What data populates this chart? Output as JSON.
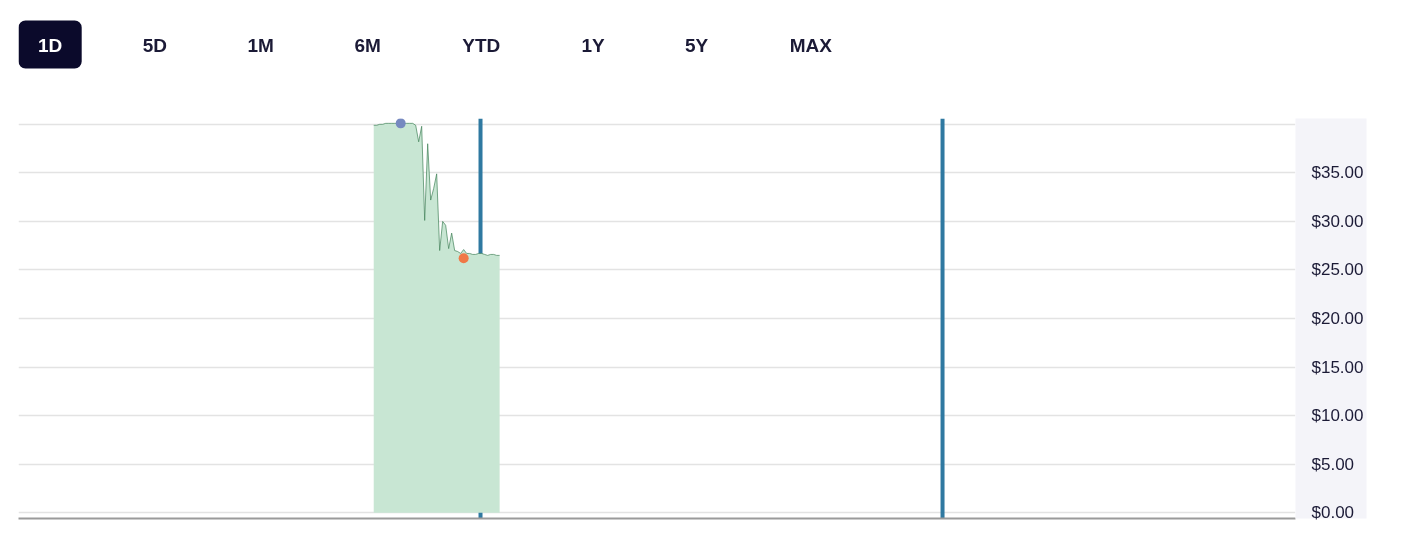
{
  "chart_data": {
    "type": "area",
    "annotations": [
      "1D",
      "5D",
      "1M",
      "6M",
      "YTD",
      "1Y",
      "5Y",
      "MAX"
    ],
    "categories": [
      null,
      null,
      null,
      null,
      null,
      null,
      null,
      null,
      null,
      null,
      null,
      null,
      null,
      null,
      null,
      null,
      null,
      null,
      null,
      null,
      null,
      null,
      null,
      null,
      null,
      null,
      null,
      null,
      null,
      null,
      null,
      null,
      null,
      null,
      null,
      null,
      null,
      null,
      null,
      null,
      null,
      null,
      null,
      null,
      null,
      null,
      null,
      null,
      null,
      null,
      null,
      null,
      null,
      null,
      null,
      null,
      null,
      null,
      null,
      null,
      null,
      null,
      null,
      null,
      null,
      null,
      null,
      null,
      null,
      null,
      null,
      null,
      null,
      null,
      null,
      null,
      null,
      null,
      null,
      null,
      null,
      null,
      null,
      null,
      null,
      null,
      null,
      null,
      null,
      null,
      null,
      null,
      null,
      null,
      null,
      null,
      null,
      null,
      null,
      null,
      null,
      null,
      null,
      null,
      null,
      null,
      null,
      null,
      null,
      null,
      null,
      null,
      null,
      null,
      null,
      null,
      null,
      null,
      null,
      null,
      null,
      null,
      null,
      null,
      null,
      null,
      null,
      null,
      null,
      null,
      null,
      null,
      null,
      null,
      null,
      null,
      null,
      null,
      null,
      null,
      null,
      null,
      null,
      null,
      null,
      null,
      null,
      null,
      null,
      null,
      null,
      null,
      null,
      null,
      null,
      null,
      null,
      null,
      null,
      null,
      null,
      null,
      null,
      null,
      null,
      null,
      null,
      null,
      null,
      null,
      null,
      null,
      null,
      null,
      null,
      null,
      null,
      null,
      null,
      null,
      null,
      null,
      null,
      null,
      null,
      null,
      null,
      null,
      null,
      null,
      null,
      null,
      null,
      null,
      null,
      null,
      null,
      null,
      null,
      null,
      null,
      null,
      null,
      null,
      null,
      null,
      null,
      null,
      null,
      null,
      null,
      null,
      null,
      null,
      null,
      null,
      null,
      null,
      null,
      null,
      null,
      null,
      null,
      null,
      null,
      null,
      null,
      null,
      null,
      null,
      null,
      null,
      null,
      null,
      null,
      null,
      null,
      null,
      null,
      null,
      null,
      null,
      null,
      null,
      null,
      null,
      null,
      null,
      null,
      null,
      null,
      null,
      null,
      null,
      null,
      null,
      null,
      null,
      null,
      null,
      null,
      null,
      null,
      null,
      null,
      null,
      null,
      null,
      null,
      null,
      null,
      null,
      null,
      null,
      null,
      null,
      null,
      null,
      null,
      null,
      null,
      null,
      null,
      null,
      null,
      null,
      null,
      null,
      null,
      null,
      null,
      null,
      null,
      null,
      null,
      null,
      null,
      null,
      null,
      null,
      null,
      null,
      null,
      null,
      null,
      null,
      null,
      null,
      null,
      null,
      null,
      null,
      null,
      null,
      null,
      null,
      null,
      null,
      null,
      null,
      null,
      null,
      null,
      null,
      null,
      null,
      null,
      null,
      null,
      null,
      null,
      null,
      null,
      null,
      null,
      null,
      null,
      null,
      null,
      null,
      null,
      null,
      null,
      null,
      null,
      null,
      null,
      null,
      null,
      null,
      null,
      null,
      null,
      null,
      null,
      null,
      null,
      null,
      null,
      null,
      null,
      null,
      null,
      null,
      null,
      null,
      null,
      null,
      null,
      null,
      null,
      null,
      null,
      null,
      null,
      null,
      null,
      null,
      null,
      null,
      null,
      null,
      null,
      null,
      null,
      null,
      null,
      null,
      null,
      null,
      null,
      null,
      null,
      null,
      null,
      null,
      null,
      null,
      null,
      null,
      null,
      null,
      null,
      null,
      null,
      null,
      null,
      null,
      null,
      null,
      null,
      null,
      null,
      null,
      null,
      null,
      null,
      null,
      null,
      null,
      null,
      null,
      null,
      null,
      null,
      null
    ],
    "series": [
      {
        "color": "#c8e6d3",
        "values": [
          null,
          null,
          null,
          null,
          null,
          null,
          null,
          null,
          null,
          null,
          null,
          null,
          null,
          null,
          null,
          null,
          null,
          null,
          null,
          null,
          null,
          null,
          null,
          null,
          null,
          null,
          null,
          null,
          null,
          null,
          null,
          null,
          null,
          null,
          null,
          null,
          null,
          null,
          null,
          null,
          null,
          null,
          null,
          null,
          null,
          null,
          null,
          null,
          null,
          null,
          null,
          null,
          null,
          null,
          null,
          null,
          null,
          null,
          null,
          null,
          null,
          null,
          null,
          null,
          null,
          null,
          null,
          null,
          null,
          null,
          null,
          null,
          null,
          null,
          null,
          null,
          null,
          null,
          null,
          null,
          null,
          null,
          null,
          null,
          null,
          null,
          null,
          null,
          null,
          null,
          null,
          null,
          null,
          null,
          null,
          null,
          null,
          null,
          null,
          null,
          null,
          null,
          null,
          null,
          null,
          null,
          null,
          null,
          null,
          null,
          null,
          null,
          null,
          null,
          null,
          null,
          null,
          null,
          39.9,
          39.9,
          40.0,
          40.0,
          40.1,
          40.1,
          40.1,
          40.1,
          40.1,
          40.1,
          40.1,
          40.1,
          40.1,
          40.1,
          39.9,
          38.2,
          39.8,
          30.1,
          38.0,
          32.2,
          33.4,
          34.9,
          27.0,
          30.0,
          29.6,
          27.2,
          28.8,
          27.0,
          26.9,
          26.7,
          27.1,
          26.7,
          26.7,
          26.6,
          26.6,
          26.7,
          26.7,
          26.6,
          26.5,
          26.6,
          26.6,
          26.5,
          26.5,
          null,
          null,
          null,
          null,
          null,
          null,
          null,
          null,
          null,
          null,
          null,
          null,
          null,
          null,
          null,
          null,
          null,
          null,
          null,
          null,
          null,
          null,
          null,
          null,
          null,
          null,
          null,
          null,
          null,
          null,
          null,
          null,
          null,
          null,
          null,
          null,
          null,
          null,
          null,
          null,
          null,
          null,
          null,
          null,
          null,
          null,
          null,
          null,
          null,
          null,
          null,
          null,
          null,
          null,
          null,
          null,
          null,
          null,
          null,
          null,
          null,
          null,
          null,
          null,
          null,
          null,
          null,
          null,
          null,
          null,
          null,
          null,
          null,
          null,
          null,
          null,
          null,
          null,
          null,
          null,
          null,
          null,
          null,
          null,
          null,
          null,
          null,
          null,
          null,
          null,
          null,
          null,
          null,
          null,
          null,
          null,
          null,
          null,
          null,
          null,
          null,
          null,
          null,
          null,
          null,
          null,
          null,
          null,
          null,
          null,
          null,
          null,
          null,
          null,
          null,
          null,
          null,
          null,
          null,
          null,
          null,
          null,
          null,
          null,
          null,
          null,
          null,
          null,
          null,
          null,
          null,
          null,
          null,
          null,
          null,
          null,
          null,
          null,
          null,
          null,
          null,
          null,
          null,
          null,
          null,
          null,
          null,
          null,
          null,
          null,
          null,
          null,
          null,
          null,
          null,
          null,
          null,
          null,
          null,
          null,
          null,
          null,
          null,
          null,
          null,
          null,
          null,
          null,
          null,
          null,
          null,
          null,
          null,
          null,
          null,
          null,
          null,
          null,
          null,
          null,
          null,
          null,
          null,
          null,
          null,
          null,
          null,
          null,
          null,
          null,
          null,
          null,
          null,
          null,
          null,
          null,
          null,
          null,
          null,
          null,
          null,
          null,
          null,
          null,
          null,
          null,
          null,
          null,
          null,
          null,
          null,
          null,
          null,
          null,
          null,
          null,
          null,
          null,
          null,
          null,
          null,
          null,
          null,
          null,
          null,
          null,
          null,
          null,
          null,
          null,
          null,
          null,
          null,
          null,
          null,
          null,
          null,
          null,
          null,
          null,
          null,
          null,
          null,
          null,
          null,
          null,
          null,
          null,
          null,
          null,
          null,
          null,
          null,
          null,
          null,
          null,
          null,
          null,
          null,
          null,
          null,
          null,
          null,
          null,
          null
        ]
      },
      {
        "type": "scatter",
        "color": "#7689c0",
        "values": [
          null,
          null,
          null,
          null,
          null,
          null,
          null,
          null,
          null,
          null,
          null,
          null,
          null,
          null,
          null,
          null,
          null,
          null,
          null,
          null,
          null,
          null,
          null,
          null,
          null,
          null,
          null,
          null,
          null,
          null,
          null,
          null,
          null,
          null,
          null,
          null,
          null,
          null,
          null,
          null,
          null,
          null,
          null,
          null,
          null,
          null,
          null,
          null,
          null,
          null,
          null,
          null,
          null,
          null,
          null,
          null,
          null,
          null,
          null,
          null,
          null,
          null,
          null,
          null,
          null,
          null,
          null,
          null,
          null,
          null,
          null,
          null,
          null,
          null,
          null,
          null,
          null,
          null,
          null,
          null,
          null,
          null,
          null,
          null,
          null,
          null,
          null,
          null,
          null,
          null,
          null,
          null,
          null,
          null,
          null,
          null,
          null,
          null,
          null,
          null,
          null,
          null,
          null,
          null,
          null,
          null,
          null,
          null,
          null,
          null,
          null,
          null,
          null,
          null,
          null,
          null,
          null,
          null,
          null,
          null,
          null,
          null,
          null,
          null,
          null,
          null,
          null,
          40.1,
          null,
          null,
          null,
          null,
          null,
          null,
          null,
          null,
          null,
          null,
          null,
          null,
          null,
          null,
          null,
          null,
          null,
          null,
          null,
          null,
          null,
          null,
          null,
          null,
          null,
          null,
          null,
          null,
          null,
          null,
          null,
          null,
          null,
          null,
          null,
          null,
          null,
          null,
          null,
          null,
          null,
          null,
          null,
          null,
          null,
          null,
          null,
          null,
          null,
          null,
          null,
          null,
          null,
          null,
          null,
          null,
          null,
          null,
          null,
          null,
          null,
          null,
          null,
          null,
          null,
          null,
          null,
          null,
          null,
          null,
          null,
          null,
          null,
          null,
          null,
          null,
          null,
          null,
          null,
          null,
          null,
          null,
          null,
          null,
          null,
          null,
          null,
          null,
          null,
          null,
          null,
          null,
          null,
          null,
          null,
          null,
          null,
          null,
          null,
          null,
          null,
          null,
          null,
          null,
          null,
          null,
          null,
          null,
          null,
          null,
          null,
          null,
          null,
          null,
          null,
          null,
          null,
          null,
          null,
          null,
          null,
          null,
          null,
          null,
          null,
          null,
          null,
          null,
          null,
          null,
          null,
          null,
          null,
          null,
          null,
          null,
          null,
          null,
          null,
          null,
          null,
          null,
          null,
          null,
          null,
          null,
          null,
          null,
          null,
          null,
          null,
          null,
          null,
          null,
          null,
          null,
          null,
          null,
          null,
          null,
          null,
          null,
          null,
          null,
          null,
          null,
          null,
          null,
          null,
          null,
          null,
          null,
          null,
          null,
          null,
          null,
          null,
          null,
          null,
          null,
          null,
          null,
          null,
          null,
          null,
          null,
          null,
          null,
          null,
          null,
          null,
          null,
          null,
          null,
          null,
          null,
          null,
          null,
          null,
          null,
          null,
          null,
          null,
          null,
          null,
          null,
          null,
          null,
          null,
          null,
          null,
          null,
          null,
          null,
          null,
          null,
          null,
          null,
          null,
          null,
          null,
          null,
          null,
          null,
          null,
          null,
          null,
          null,
          null,
          null,
          null,
          null,
          null,
          null,
          null,
          null,
          null,
          null,
          null,
          null,
          null,
          null,
          null,
          null,
          null,
          null,
          null,
          null,
          null,
          null,
          null,
          null,
          null,
          null,
          null,
          null,
          null,
          null,
          null,
          null,
          null,
          null,
          null,
          null,
          null,
          null,
          null,
          null,
          null,
          null,
          null,
          null,
          null,
          null,
          null,
          null,
          null,
          null,
          null,
          null,
          null,
          null,
          null,
          null,
          null,
          null,
          null,
          null,
          null,
          null,
          null,
          null,
          null,
          null,
          null,
          null,
          null,
          null
        ]
      },
      {
        "type": "scatter",
        "color": "#f07846",
        "values": [
          null,
          null,
          null,
          null,
          null,
          null,
          null,
          null,
          null,
          null,
          null,
          null,
          null,
          null,
          null,
          null,
          null,
          null,
          null,
          null,
          null,
          null,
          null,
          null,
          null,
          null,
          null,
          null,
          null,
          null,
          null,
          null,
          null,
          null,
          null,
          null,
          null,
          null,
          null,
          null,
          null,
          null,
          null,
          null,
          null,
          null,
          null,
          null,
          null,
          null,
          null,
          null,
          null,
          null,
          null,
          null,
          null,
          null,
          null,
          null,
          null,
          null,
          null,
          null,
          null,
          null,
          null,
          null,
          null,
          null,
          null,
          null,
          null,
          null,
          null,
          null,
          null,
          null,
          null,
          null,
          null,
          null,
          null,
          null,
          null,
          null,
          null,
          null,
          null,
          null,
          null,
          null,
          null,
          null,
          null,
          null,
          null,
          null,
          null,
          null,
          null,
          null,
          null,
          null,
          null,
          null,
          null,
          null,
          null,
          null,
          null,
          null,
          null,
          null,
          null,
          null,
          null,
          null,
          null,
          null,
          null,
          null,
          null,
          null,
          null,
          null,
          null,
          null,
          null,
          null,
          null,
          null,
          null,
          null,
          null,
          null,
          null,
          null,
          null,
          null,
          null,
          null,
          null,
          null,
          null,
          null,
          null,
          null,
          26.2,
          null,
          null,
          null,
          null,
          null,
          null,
          null,
          null,
          null,
          null,
          null,
          null,
          null,
          null,
          null,
          null,
          null,
          null,
          null,
          null,
          null,
          null,
          null,
          null,
          null,
          null,
          null,
          null,
          null,
          null,
          null,
          null,
          null,
          null,
          null,
          null,
          null,
          null,
          null,
          null,
          null,
          null,
          null,
          null,
          null,
          null,
          null,
          null,
          null,
          null,
          null,
          null,
          null,
          null,
          null,
          null,
          null,
          null,
          null,
          null,
          null,
          null,
          null,
          null,
          null,
          null,
          null,
          null,
          null,
          null,
          null,
          null,
          null,
          null,
          null,
          null,
          null,
          null,
          null,
          null,
          null,
          null,
          null,
          null,
          null,
          null,
          null,
          null,
          null,
          null,
          null,
          null,
          null,
          null,
          null,
          null,
          null,
          null,
          null,
          null,
          null,
          null,
          null,
          null,
          null,
          null,
          null,
          null,
          null,
          null,
          null,
          null,
          null,
          null,
          null,
          null,
          null,
          null,
          null,
          null,
          null,
          null,
          null,
          null,
          null,
          null,
          null,
          null,
          null,
          null,
          null,
          null,
          null,
          null,
          null,
          null,
          null,
          null,
          null,
          null,
          null,
          null,
          null,
          null,
          null,
          null,
          null,
          null,
          null,
          null,
          null,
          null,
          null,
          null,
          null,
          null,
          null,
          null,
          null,
          null,
          null,
          null,
          null,
          null,
          null,
          null,
          null,
          null,
          null,
          null,
          null,
          null,
          null,
          null,
          null,
          null,
          null,
          null,
          null,
          null,
          null,
          null,
          null,
          null,
          null,
          null,
          null,
          null,
          null,
          null,
          null,
          null,
          null,
          null,
          null,
          null,
          null,
          null,
          null,
          null,
          null,
          null,
          null,
          null,
          null,
          null,
          null,
          null,
          null,
          null,
          null,
          null,
          null,
          null,
          null,
          null,
          null,
          null,
          null,
          null,
          null,
          null,
          null,
          null,
          null,
          null,
          null,
          null,
          null,
          null,
          null,
          null,
          null,
          null,
          null,
          null,
          null,
          null,
          null,
          null,
          null,
          null,
          null,
          null,
          null,
          null,
          null,
          null,
          null,
          null,
          null,
          null,
          null,
          null,
          null,
          null,
          null,
          null,
          null,
          null,
          null,
          null,
          null,
          null,
          null,
          null,
          null,
          null,
          null,
          null,
          null,
          null,
          null,
          null,
          null,
          null,
          null
        ]
      }
    ],
    "ylim": [
      -0.6,
      40.6
    ],
    "yticks": [
      {
        "value": 0,
        "label": "$0.00"
      },
      {
        "value": 5,
        "label": "$5.00"
      },
      {
        "value": 10,
        "label": "$10.00"
      },
      {
        "value": 15,
        "label": "$15.00"
      },
      {
        "value": 20,
        "label": "$20.00"
      },
      {
        "value": 25,
        "label": "$25.00"
      },
      {
        "value": 30,
        "label": "$30.00"
      },
      {
        "value": 35,
        "label": "$35.00"
      },
      {
        "value": 40,
        "label": null
      }
    ],
    "grid": "y",
    "tick_labels": "y"
  }
}
